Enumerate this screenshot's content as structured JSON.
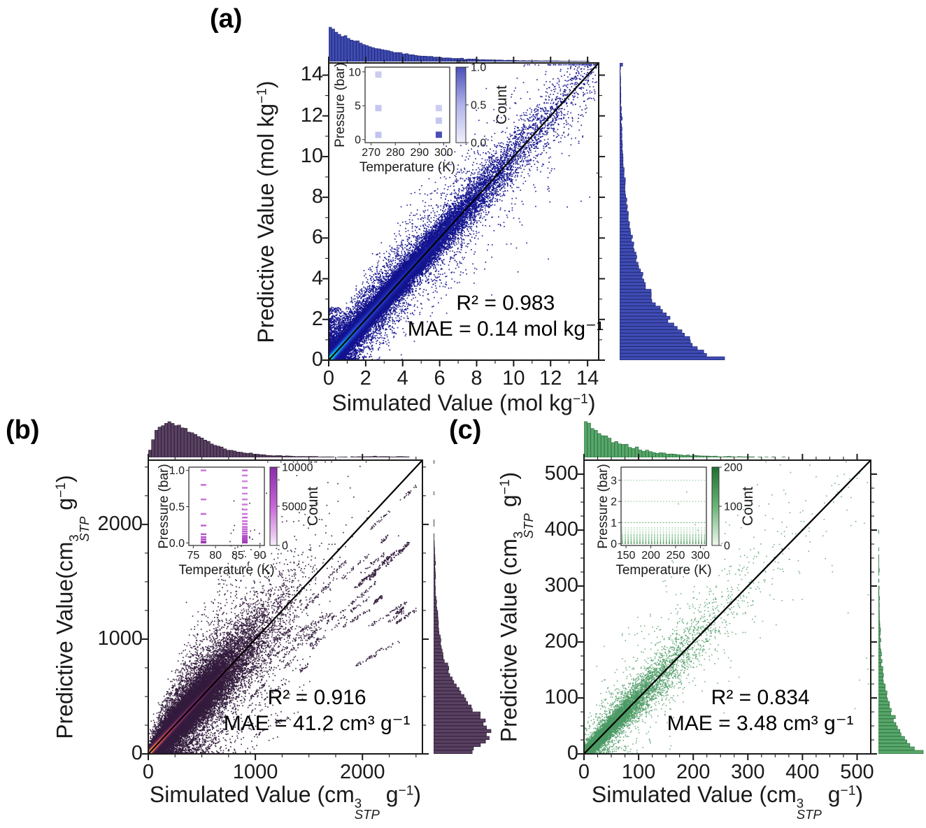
{
  "figure": {
    "background": "#ffffff"
  },
  "chart_data": [
    {
      "id": "a",
      "panel_label": "(a)",
      "type": "scatter",
      "xlabel_segments": [
        {
          "t": "Simulated Value (mol kg"
        },
        {
          "t": "−1",
          "s": "sup"
        },
        {
          "t": ")"
        }
      ],
      "ylabel_segments": [
        {
          "t": "Predictive Value (mol kg"
        },
        {
          "t": "−1",
          "s": "sup"
        },
        {
          "t": ")"
        }
      ],
      "xlim": [
        0,
        14.6
      ],
      "ylim": [
        0,
        14.6
      ],
      "xticks": [
        0,
        2,
        4,
        6,
        8,
        10,
        12,
        14
      ],
      "xtick_labels": [
        "0",
        "2",
        "4",
        "6",
        "8",
        "10",
        "12",
        "14"
      ],
      "yticks": [
        0,
        2,
        4,
        6,
        8,
        10,
        12,
        14
      ],
      "ytick_labels": [
        "0",
        "2",
        "4",
        "6",
        "8",
        "10",
        "12",
        "14"
      ],
      "minor_step": 1,
      "identity_line": true,
      "stats": {
        "r2": "R² = 0.983",
        "mae": "MAE = 0.14 mol kg⁻¹"
      },
      "hist_bins": 88,
      "scatter": {
        "n": 42000,
        "dist": "exp",
        "x_scale": 2.9,
        "noise_base": 0.16,
        "noise_slope": 0.05,
        "wide_frac": 0.15,
        "wide_mult": 3.2,
        "hot_x": 3.4,
        "hot_w": 0.16,
        "point_size": 1.7,
        "alpha": 0.9,
        "seed": 11,
        "spray_n": 700,
        "spray_x": 0.5,
        "spray_y": 2.6
      },
      "colors": {
        "cmap": [
          [
            0,
            "#13138f"
          ],
          [
            0.55,
            "#2a43cf"
          ],
          [
            0.85,
            "#00b7e0"
          ],
          [
            1,
            "#52eaa6"
          ]
        ],
        "hist_fill": "#3f4cb4",
        "hist_edge": "#20266e"
      },
      "inset": {
        "xlabel": "Temperature (K)",
        "ylabel": "Pressure (bar)",
        "xlim": [
          267.5,
          302.5
        ],
        "xticks": [
          270,
          280,
          290,
          300
        ],
        "xtick_labels": [
          "270",
          "280",
          "290",
          "300"
        ],
        "ylim": [
          -0.45,
          10.7
        ],
        "yticks": [
          0,
          5,
          10
        ],
        "ytick_labels": [
          "0",
          "5",
          "10"
        ],
        "marker": "square",
        "points": [
          {
            "x": 273,
            "y": 9.6,
            "c": 0.3
          },
          {
            "x": 273,
            "y": 4.65,
            "c": 0.33
          },
          {
            "x": 273,
            "y": 0.7,
            "c": 0.36
          },
          {
            "x": 298,
            "y": 4.65,
            "c": 0.28
          },
          {
            "x": 298,
            "y": 2.8,
            "c": 0.33
          },
          {
            "x": 298,
            "y": 0.72,
            "c": 1.0
          }
        ],
        "colorbar": {
          "label": "Count",
          "tick_labels": [
            "0.0",
            "0.5",
            "1.0"
          ],
          "scale_note": "1e6",
          "gradient": [
            "#efeffb",
            "#b0b3ea",
            "#4a4fb8"
          ]
        }
      }
    },
    {
      "id": "b",
      "panel_label": "(b)",
      "type": "scatter",
      "xlabel_segments": [
        {
          "t": "Simulated Value (cm"
        },
        {
          "s": "stack",
          "sup": "3",
          "sub": "STP"
        },
        {
          "t": " g"
        },
        {
          "t": "−1",
          "s": "sup"
        },
        {
          "t": ")"
        }
      ],
      "ylabel_segments": [
        {
          "t": "Predictive Value(cm"
        },
        {
          "s": "stack",
          "sup": "3",
          "sub": "STP"
        },
        {
          "t": " g"
        },
        {
          "t": "−1",
          "s": "sup"
        },
        {
          "t": ")"
        }
      ],
      "xlim": [
        0,
        2560
      ],
      "ylim": [
        0,
        2560
      ],
      "xticks": [
        0,
        1000,
        2000
      ],
      "xtick_labels": [
        "0",
        "1000",
        "2000"
      ],
      "yticks": [
        0,
        1000,
        2000
      ],
      "ytick_labels": [
        "0",
        "1000",
        "2000"
      ],
      "minor_step": 250,
      "identity_line": true,
      "stats": {
        "r2": "R² = 0.916",
        "mae": "MAE = 41.2 cm³ g⁻¹"
      },
      "hist_bins": 84,
      "scatter": {
        "n": 30000,
        "dist": "erlang",
        "x_scale": 195,
        "noise_base": 25,
        "noise_slope": 0.16,
        "wide_frac": 0.2,
        "wide_mult": 2.8,
        "hot_x": 430,
        "hot_w": 20,
        "point_size": 1.7,
        "alpha": 0.9,
        "seed": 23,
        "streaks": 55
      },
      "colors": {
        "cmap": [
          [
            0,
            "#331c3d"
          ],
          [
            0.45,
            "#7c2d68"
          ],
          [
            0.7,
            "#c8504e"
          ],
          [
            0.88,
            "#f49b42"
          ],
          [
            1,
            "#ffd998"
          ]
        ],
        "hist_fill": "#5a4163",
        "hist_edge": "#2c1f33"
      },
      "inset": {
        "xlabel": "Temperature (K)",
        "ylabel": "Pressure (bar)",
        "xlim": [
          74,
          91
        ],
        "xticks": [
          75,
          80,
          85,
          90
        ],
        "xtick_labels": [
          "75",
          "80",
          "85",
          "90"
        ],
        "ylim": [
          -0.035,
          1.045
        ],
        "yticks": [
          0,
          0.5,
          1
        ],
        "ytick_labels": [
          "0.0",
          "0.5",
          "1.0"
        ],
        "marker": "dash",
        "points": [
          {
            "x": 77.3,
            "y": 1.0,
            "c": 0.45
          },
          {
            "x": 77.3,
            "y": 0.8,
            "c": 0.5
          },
          {
            "x": 77.3,
            "y": 0.6,
            "c": 0.45
          },
          {
            "x": 77.3,
            "y": 0.4,
            "c": 0.5
          },
          {
            "x": 77.3,
            "y": 0.24,
            "c": 0.55
          },
          {
            "x": 77.3,
            "y": 0.12,
            "c": 0.65
          },
          {
            "x": 77.3,
            "y": 0.08,
            "c": 0.7
          },
          {
            "x": 77.3,
            "y": 0.05,
            "c": 0.75
          },
          {
            "x": 77.3,
            "y": 0.02,
            "c": 0.8
          },
          {
            "x": 77.3,
            "y": 0.005,
            "c": 0.85
          },
          {
            "x": 86.6,
            "y": 1.0,
            "c": 0.5
          },
          {
            "x": 86.6,
            "y": 0.93,
            "c": 0.42
          },
          {
            "x": 86.6,
            "y": 0.85,
            "c": 0.4
          },
          {
            "x": 86.6,
            "y": 0.76,
            "c": 0.45
          },
          {
            "x": 86.6,
            "y": 0.68,
            "c": 0.4
          },
          {
            "x": 86.6,
            "y": 0.6,
            "c": 0.42
          },
          {
            "x": 86.6,
            "y": 0.53,
            "c": 0.45
          },
          {
            "x": 86.6,
            "y": 0.46,
            "c": 0.42
          },
          {
            "x": 86.6,
            "y": 0.4,
            "c": 0.45
          },
          {
            "x": 86.6,
            "y": 0.35,
            "c": 0.5
          },
          {
            "x": 86.6,
            "y": 0.3,
            "c": 0.5
          },
          {
            "x": 86.6,
            "y": 0.26,
            "c": 0.52
          },
          {
            "x": 86.6,
            "y": 0.22,
            "c": 0.55
          },
          {
            "x": 86.6,
            "y": 0.19,
            "c": 0.55
          },
          {
            "x": 86.6,
            "y": 0.16,
            "c": 0.6
          },
          {
            "x": 86.6,
            "y": 0.13,
            "c": 0.6
          },
          {
            "x": 86.6,
            "y": 0.1,
            "c": 0.65
          },
          {
            "x": 86.6,
            "y": 0.08,
            "c": 0.68
          },
          {
            "x": 86.6,
            "y": 0.06,
            "c": 0.7
          },
          {
            "x": 86.6,
            "y": 0.04,
            "c": 0.75
          },
          {
            "x": 86.6,
            "y": 0.02,
            "c": 0.8
          },
          {
            "x": 86.6,
            "y": 0.005,
            "c": 0.85
          }
        ],
        "colorbar": {
          "label": "Count",
          "tick_labels": [
            "0",
            "5000",
            "10000"
          ],
          "scale_note": "",
          "gradient": [
            "#f6ebfa",
            "#c766d8",
            "#8a2ba8"
          ]
        }
      }
    },
    {
      "id": "c",
      "panel_label": "(c)",
      "type": "scatter",
      "xlabel_segments": [
        {
          "t": "Simulated Value (cm"
        },
        {
          "s": "stack",
          "sup": "3",
          "sub": "STP"
        },
        {
          "t": " g"
        },
        {
          "t": "−1",
          "s": "sup"
        },
        {
          "t": ")"
        }
      ],
      "ylabel_segments": [
        {
          "t": "Predictive Value (cm"
        },
        {
          "s": "stack",
          "sup": "3",
          "sub": "STP"
        },
        {
          "t": " g"
        },
        {
          "t": "−1",
          "s": "sup"
        },
        {
          "t": ")"
        }
      ],
      "xlim": [
        0,
        525
      ],
      "ylim": [
        0,
        525
      ],
      "xticks": [
        0,
        100,
        200,
        300,
        400,
        500
      ],
      "xtick_labels": [
        "0",
        "100",
        "200",
        "300",
        "400",
        "500"
      ],
      "yticks": [
        0,
        100,
        200,
        300,
        400,
        500
      ],
      "ytick_labels": [
        "0",
        "100",
        "200",
        "300",
        "400",
        "500"
      ],
      "minor_step": 25,
      "identity_line": true,
      "stats": {
        "r2": "R² = 0.834",
        "mae": "MAE = 3.48 cm³ g⁻¹"
      },
      "hist_bins": 84,
      "scatter": {
        "n": 9500,
        "dist": "exp",
        "x_scale": 64,
        "noise_base": 5,
        "noise_slope": 0.12,
        "wide_frac": 0.12,
        "wide_mult": 3.5,
        "hot_x": 0,
        "hot_w": 1,
        "point_size": 1.6,
        "alpha": 0.78,
        "seed": 37,
        "far_n": 170
      },
      "colors": {
        "cmap": [
          [
            0,
            "#4c9a64"
          ],
          [
            1,
            "#4c9a64"
          ]
        ],
        "hist_fill": "#58a76a",
        "hist_edge": "#2b6e3e"
      },
      "inset": {
        "xlabel": "Temperature (K)",
        "ylabel": "Pressure (bar)",
        "xlim": [
          140,
          312
        ],
        "xticks": [
          150,
          200,
          250,
          300
        ],
        "xtick_labels": [
          "150",
          "200",
          "250",
          "300"
        ],
        "ylim": [
          -0.08,
          3.62
        ],
        "yticks": [
          0,
          1,
          2,
          3
        ],
        "ytick_labels": [
          "0",
          "1",
          "2",
          "3"
        ],
        "marker": "hline",
        "points": [
          {
            "y": 3,
            "c": 0.3
          },
          {
            "y": 2,
            "c": 0.3
          },
          {
            "y": 1,
            "c": 0.5
          },
          {
            "y": 0.75,
            "c": 0.3
          },
          {
            "y": 0.65,
            "c": 0.3
          },
          {
            "y": 0.55,
            "c": 0.3
          },
          {
            "y": 0.45,
            "c": 0.35
          },
          {
            "y": 0.4,
            "c": 0.35
          },
          {
            "y": 0.35,
            "c": 0.35
          },
          {
            "y": 0.3,
            "c": 0.4
          },
          {
            "y": 0.25,
            "c": 0.4
          },
          {
            "y": 0.2,
            "c": 0.45
          },
          {
            "y": 0.15,
            "c": 0.5
          },
          {
            "y": 0.1,
            "c": 0.55
          },
          {
            "y": 0.05,
            "c": 0.65
          },
          {
            "y": 0.02,
            "c": 0.95
          }
        ],
        "colorbar": {
          "label": "Count",
          "tick_labels": [
            "0",
            "100",
            "200"
          ],
          "scale_note": "",
          "gradient": [
            "#eef8ee",
            "#6ab577",
            "#1e6f30"
          ]
        }
      }
    }
  ]
}
